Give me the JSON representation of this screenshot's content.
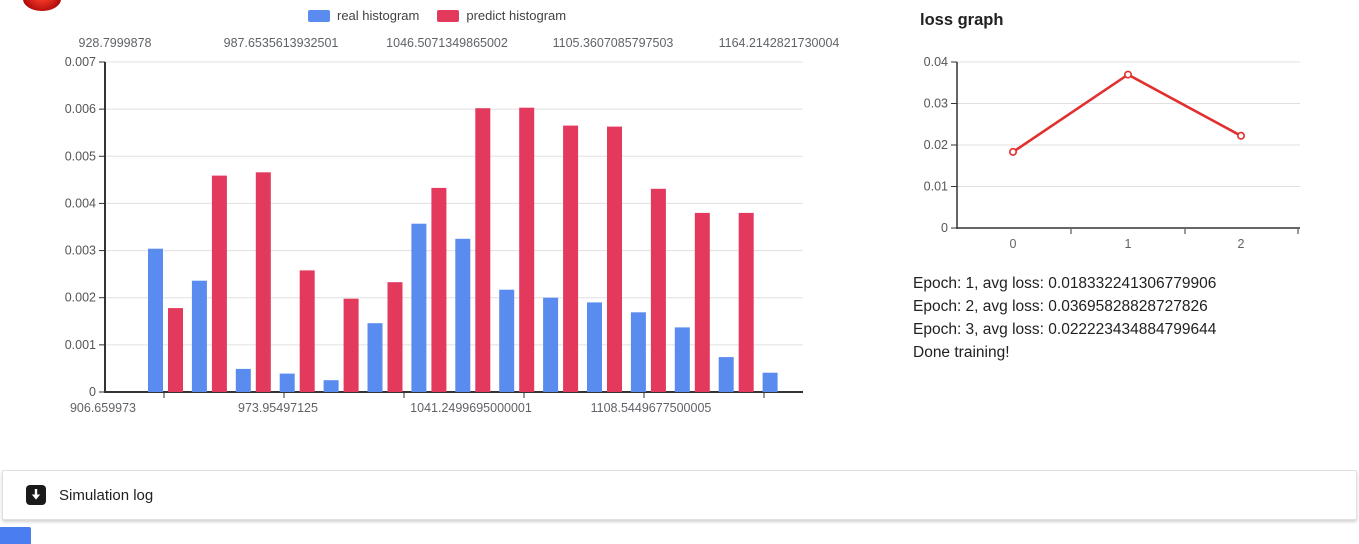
{
  "colors": {
    "real": "#5a8bee",
    "predict": "#e2395d",
    "loss_line": "#e22f2f",
    "icon_black": "#1a1a1a",
    "partial_blue": "#4a7df0"
  },
  "chart_data": [
    {
      "type": "bar",
      "title": "",
      "legend_position": "top",
      "grid": true,
      "ylim": [
        0,
        0.007
      ],
      "y_ticks": [
        "0.007",
        "0.006",
        "0.005",
        "0.004",
        "0.003",
        "0.002",
        "0.001",
        "0"
      ],
      "top_axis_labels": [
        "928.7999878",
        "987.6535613932501",
        "1046.5071349865002",
        "1105.3607085797503",
        "1164.2142821730004"
      ],
      "bottom_axis_labels": [
        "906.659973",
        "973.95497125",
        "1041.2499695000001",
        "1108.5449677500005"
      ],
      "series": [
        {
          "name": "real histogram",
          "color": "#5a8bee",
          "values": [
            0.00304,
            0.00236,
            0.00049,
            0.00039,
            0.00025,
            0.00146,
            0.00357,
            0.00325,
            0.00217,
            0.002,
            0.0019,
            0.00169,
            0.00137,
            0.00074,
            0.00041
          ]
        },
        {
          "name": "predict histogram",
          "color": "#e2395d",
          "values": [
            0.00178,
            0.00459,
            0.00466,
            0.00258,
            0.00198,
            0.00233,
            0.00433,
            0.00602,
            0.00603,
            0.00565,
            0.00563,
            0.00431,
            0.0038,
            0.0038,
            0
          ]
        }
      ]
    },
    {
      "type": "line",
      "title": "loss graph",
      "grid": true,
      "color": "#e22f2f",
      "ylim": [
        0,
        0.04
      ],
      "y_ticks": [
        "0.04",
        "0.03",
        "0.02",
        "0.01",
        "0"
      ],
      "x_ticks": [
        "0",
        "1",
        "2"
      ],
      "x": [
        0,
        1,
        2
      ],
      "y": [
        0.018332241306779906,
        0.03695828828727826,
        0.022223434884799644
      ]
    }
  ],
  "log_lines": [
    "Epoch: 1, avg loss: 0.018332241306779906",
    "Epoch: 2, avg loss: 0.03695828828727826",
    "Epoch: 3, avg loss: 0.022223434884799644",
    "Done training!"
  ],
  "simulation_log": {
    "label": "Simulation log",
    "icon": "download-arrow-icon"
  }
}
